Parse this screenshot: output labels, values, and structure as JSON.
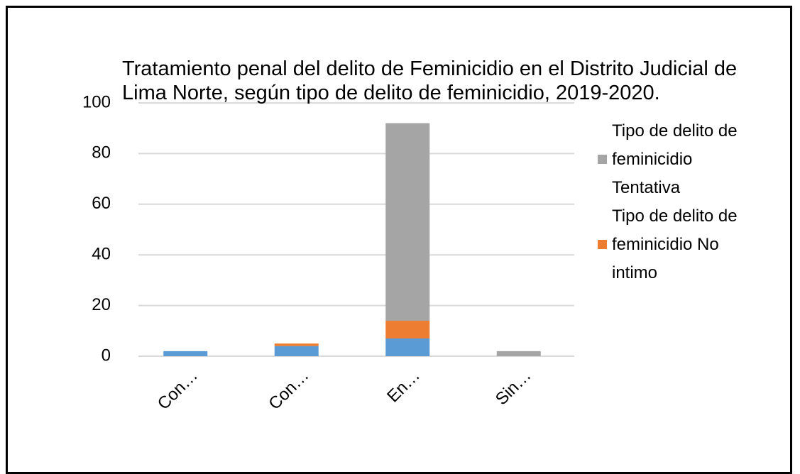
{
  "chart_data": {
    "type": "bar",
    "stacked": true,
    "title": "Tratamiento penal del delito de Feminicidio en el Distrito Judicial de Lima Norte, según tipo de delito de feminicidio, 2019-2020.",
    "categories": [
      "Con…",
      "Con…",
      "En…",
      "Sin…"
    ],
    "series": [
      {
        "color": "#5b9bd5",
        "values": [
          2,
          4,
          7,
          0
        ]
      },
      {
        "name": "Tipo de delito de feminicidio No intimo",
        "color": "#ed7d31",
        "values": [
          0,
          1,
          7,
          0
        ]
      },
      {
        "name": "Tipo de delito de feminicidio Tentativa",
        "color": "#a5a5a5",
        "values": [
          0,
          0,
          78,
          2
        ]
      }
    ],
    "ylim": [
      0,
      100
    ],
    "yticks": [
      0,
      20,
      40,
      60,
      80,
      100
    ],
    "grid": true,
    "legend": "right"
  }
}
